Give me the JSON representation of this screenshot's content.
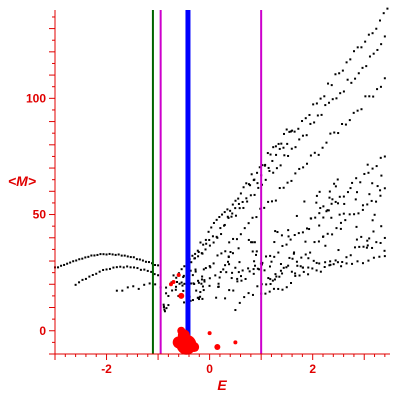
{
  "chart_data": {
    "type": "scatter",
    "title": "",
    "xlabel": "E",
    "ylabel": "<M>",
    "xlim": [
      -3.0,
      3.5
    ],
    "ylim": [
      -10,
      138
    ],
    "x_ticks": [
      -2,
      0,
      2
    ],
    "y_ticks": [
      0,
      50,
      100
    ],
    "grid": false,
    "colors": {
      "axis": "#e00000",
      "points": "#000000",
      "red_points": "#ff0000",
      "green_line": "#006400",
      "magenta_line": "#cc00cc",
      "blue_line": "#0000ff"
    },
    "vertical_lines": [
      {
        "x": -1.1,
        "color": "#006400",
        "width": 2
      },
      {
        "x": -0.95,
        "color": "#cc00cc",
        "width": 2
      },
      {
        "x": -0.42,
        "color": "#0000ff",
        "width": 5
      },
      {
        "x": 1.0,
        "color": "#cc00cc",
        "width": 2
      }
    ],
    "series": [
      {
        "start": [
          -0.8,
          15
        ],
        "end": [
          3.45,
          138
        ],
        "n": 60
      },
      {
        "start": [
          -0.7,
          22
        ],
        "end": [
          1.6,
          88
        ],
        "n": 45
      },
      {
        "start": [
          -0.5,
          25
        ],
        "end": [
          3.4,
          125
        ],
        "n": 55
      },
      {
        "start": [
          -0.3,
          20
        ],
        "end": [
          3.4,
          108
        ],
        "n": 50
      },
      {
        "start": [
          0.3,
          15
        ],
        "end": [
          3.4,
          75
        ],
        "n": 40
      },
      {
        "start": [
          0.5,
          10
        ],
        "end": [
          3.4,
          60
        ],
        "n": 35
      },
      {
        "start": [
          1.0,
          15
        ],
        "end": [
          3.4,
          40
        ],
        "n": 30
      },
      {
        "start": [
          -1.8,
          18
        ],
        "end": [
          3.4,
          32
        ],
        "n": 50
      },
      {
        "start": [
          -3.0,
          27
        ],
        "end": [
          -1.0,
          28
        ],
        "n": 35,
        "curve": true,
        "peak": 33
      },
      {
        "start": [
          -2.6,
          20
        ],
        "end": [
          -1.0,
          24
        ],
        "n": 25,
        "curve": true,
        "peak": 26
      }
    ],
    "red_points": [
      {
        "x": -0.45,
        "y": -6,
        "r": 10
      },
      {
        "x": -0.5,
        "y": -2,
        "r": 6
      },
      {
        "x": -0.6,
        "y": -5,
        "r": 6
      },
      {
        "x": -0.55,
        "y": 0,
        "r": 4
      },
      {
        "x": -0.3,
        "y": -7,
        "r": 5
      },
      {
        "x": 0.0,
        "y": -1,
        "r": 2
      },
      {
        "x": 0.15,
        "y": -7,
        "r": 3
      },
      {
        "x": 0.5,
        "y": -5,
        "r": 2
      },
      {
        "x": -0.55,
        "y": 15,
        "r": 3
      },
      {
        "x": -0.6,
        "y": 24,
        "r": 2
      },
      {
        "x": -0.7,
        "y": 21,
        "r": 2
      },
      {
        "x": -0.75,
        "y": 20,
        "r": 2
      }
    ]
  }
}
